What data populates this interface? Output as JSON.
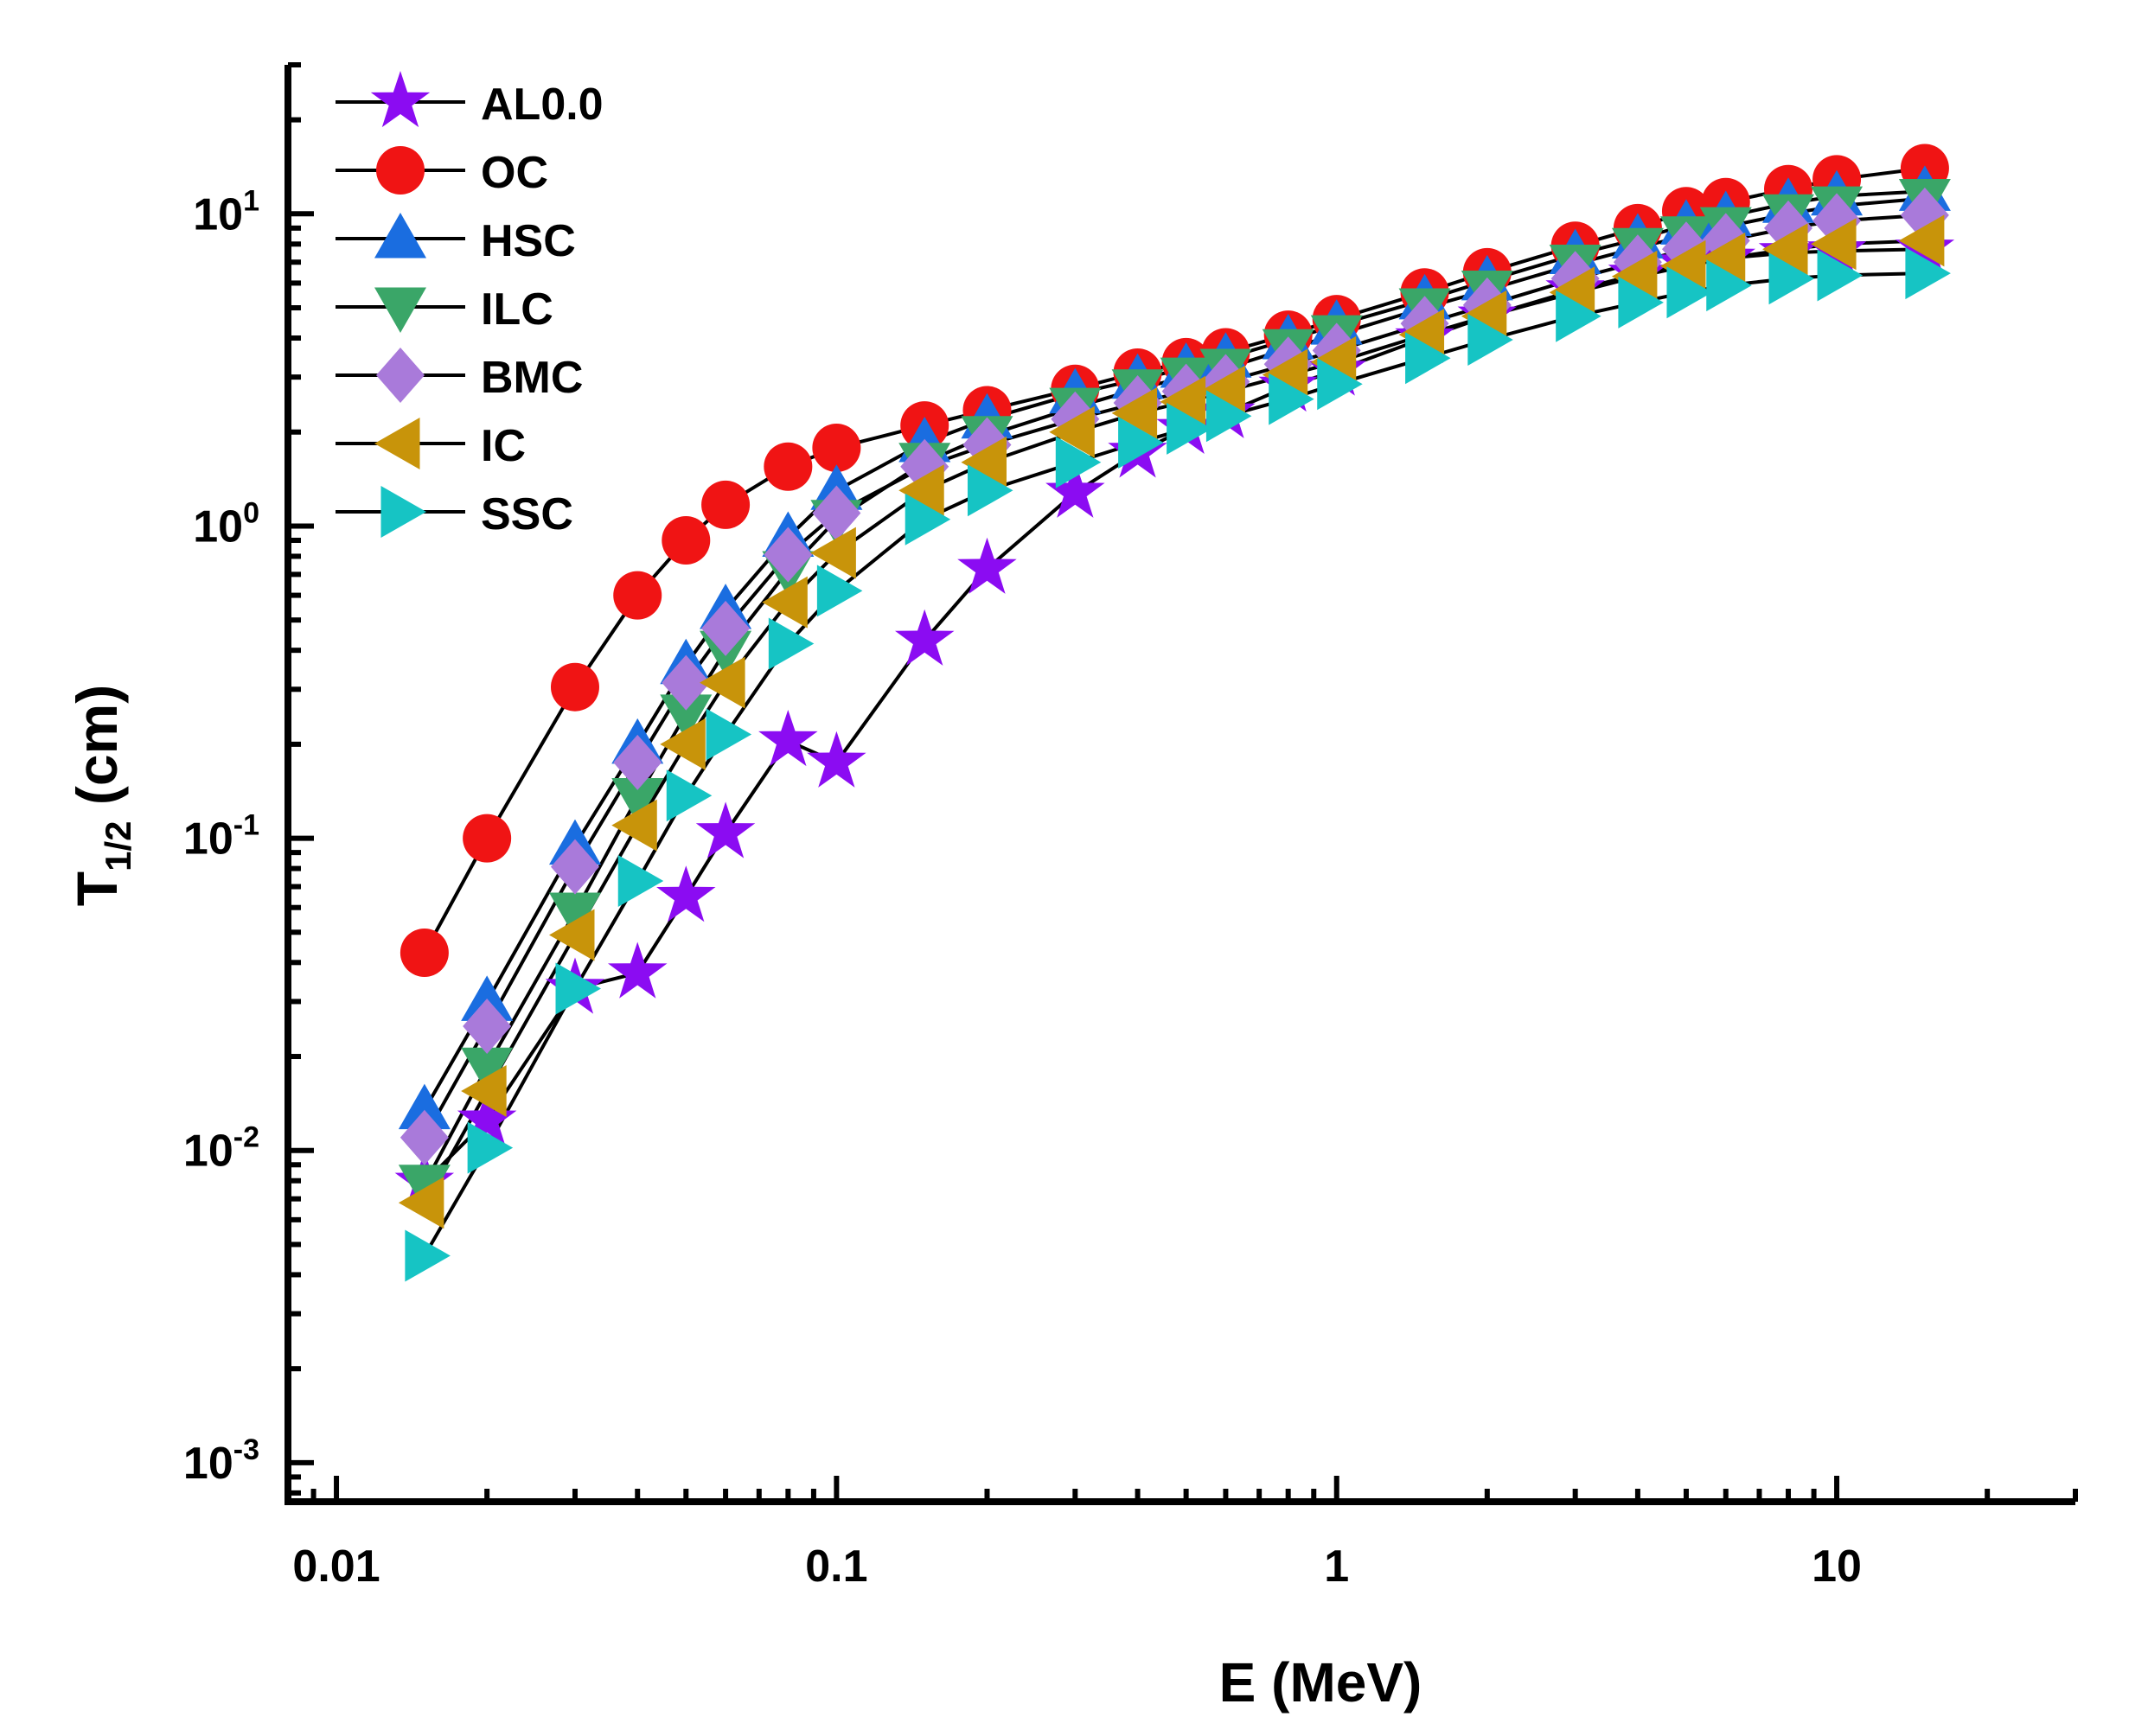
{
  "chart_data": {
    "type": "line",
    "xscale": "log",
    "yscale": "log",
    "xlim": [
      0.008,
      30
    ],
    "ylim": [
      0.00075,
      30
    ],
    "xlabel": "E (MeV)",
    "ylabel_main": "T",
    "ylabel_sub": "1/2",
    "ylabel_unit": " (cm)",
    "x_ticks": [
      {
        "value": 0.01,
        "label": "0.01"
      },
      {
        "value": 0.1,
        "label": "0.1"
      },
      {
        "value": 1,
        "label": "1"
      },
      {
        "value": 10,
        "label": "10"
      }
    ],
    "y_ticks": [
      {
        "value": 0.001,
        "base": "10",
        "exp": "-3"
      },
      {
        "value": 0.01,
        "base": "10",
        "exp": "-2"
      },
      {
        "value": 0.1,
        "base": "10",
        "exp": "-1"
      },
      {
        "value": 1,
        "base": "10",
        "exp": "0"
      },
      {
        "value": 10,
        "base": "10",
        "exp": "1"
      }
    ],
    "legend_position": "top-left",
    "x": [
      0.015,
      0.02,
      0.03,
      0.04,
      0.05,
      0.06,
      0.08,
      0.1,
      0.15,
      0.2,
      0.3,
      0.4,
      0.5,
      0.6,
      0.8,
      1,
      1.5,
      2,
      3,
      4,
      5,
      6,
      8,
      10,
      15
    ],
    "series": [
      {
        "name": "AL0.0",
        "marker": "star",
        "color": "#8b0cf2",
        "values": [
          0.0079,
          0.0125,
          0.033,
          0.037,
          0.065,
          0.104,
          0.205,
          0.175,
          0.43,
          0.73,
          1.28,
          1.72,
          2.05,
          2.3,
          2.8,
          3.15,
          4.0,
          4.7,
          5.7,
          6.4,
          6.9,
          7.2,
          7.5,
          7.6,
          7.7
        ]
      },
      {
        "name": "OC",
        "marker": "circle",
        "color": "#f01414",
        "values": [
          0.043,
          0.1,
          0.305,
          0.6,
          0.9,
          1.17,
          1.55,
          1.78,
          2.1,
          2.35,
          2.75,
          3.1,
          3.35,
          3.6,
          4.1,
          4.6,
          5.6,
          6.5,
          7.9,
          9.0,
          10.2,
          10.9,
          12.0,
          12.9,
          14.0
        ]
      },
      {
        "name": "HSC",
        "marker": "triangle-up",
        "color": "#1a6de0",
        "values": [
          0.0135,
          0.03,
          0.095,
          0.2,
          0.36,
          0.54,
          0.92,
          1.3,
          1.85,
          2.2,
          2.65,
          2.95,
          3.2,
          3.45,
          3.95,
          4.4,
          5.3,
          6.1,
          7.4,
          8.3,
          9.2,
          9.8,
          10.8,
          11.4,
          11.8
        ]
      },
      {
        "name": "ILC",
        "marker": "triangle-down",
        "color": "#3aa668",
        "values": [
          0.0078,
          0.0185,
          0.058,
          0.135,
          0.25,
          0.4,
          0.72,
          1.05,
          1.6,
          1.95,
          2.4,
          2.75,
          3.0,
          3.2,
          3.7,
          4.1,
          5.0,
          5.7,
          6.9,
          7.8,
          8.5,
          9.1,
          10.0,
          10.6,
          11.2
        ]
      },
      {
        "name": "BMC",
        "marker": "diamond",
        "color": "#a97ada",
        "values": [
          0.011,
          0.025,
          0.081,
          0.175,
          0.315,
          0.47,
          0.81,
          1.1,
          1.55,
          1.82,
          2.2,
          2.48,
          2.7,
          2.9,
          3.3,
          3.65,
          4.45,
          5.1,
          6.2,
          7.0,
          7.7,
          8.2,
          9.0,
          9.5,
          9.9
        ]
      },
      {
        "name": "IC",
        "marker": "triangle-left",
        "color": "#c8940a",
        "values": [
          0.0068,
          0.0155,
          0.049,
          0.11,
          0.2,
          0.315,
          0.57,
          0.82,
          1.3,
          1.6,
          2.0,
          2.3,
          2.5,
          2.7,
          3.05,
          3.35,
          4.1,
          4.7,
          5.6,
          6.3,
          6.8,
          7.2,
          7.7,
          8.0,
          8.2
        ]
      },
      {
        "name": "SSC",
        "marker": "triangle-right",
        "color": "#16c4c4",
        "values": [
          0.0046,
          0.0102,
          0.033,
          0.073,
          0.137,
          0.215,
          0.42,
          0.62,
          1.05,
          1.3,
          1.6,
          1.85,
          2.05,
          2.25,
          2.55,
          2.85,
          3.45,
          3.95,
          4.7,
          5.2,
          5.6,
          5.9,
          6.2,
          6.35,
          6.45
        ]
      }
    ]
  }
}
